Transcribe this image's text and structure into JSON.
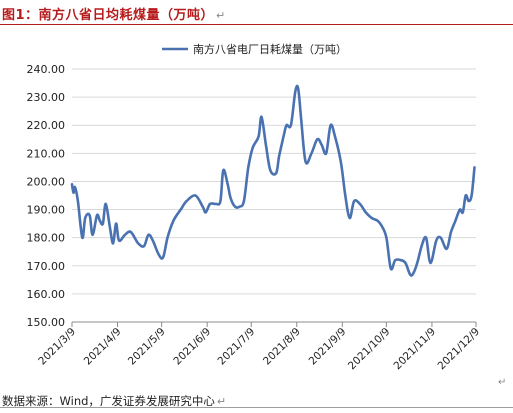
{
  "header": {
    "title": "图1：南方八省日均耗煤量（万吨）",
    "return_mark": "↵"
  },
  "footer": {
    "source": "数据来源：Wind，广发证券发展研究中心",
    "return_mark": "↵"
  },
  "colors": {
    "title": "#b71c1c",
    "series": "#4a72b0"
  },
  "chart_data": {
    "type": "line",
    "title": "",
    "xlabel": "",
    "ylabel": "",
    "ylim": [
      150,
      240
    ],
    "yticks": [
      "150.00",
      "160.00",
      "170.00",
      "180.00",
      "190.00",
      "200.00",
      "210.00",
      "220.00",
      "230.00",
      "240.00"
    ],
    "xlim": [
      "2021-03-09",
      "2021-12-09"
    ],
    "xticks": [
      {
        "date": "2021-03-09",
        "label": "2021/3/9"
      },
      {
        "date": "2021-04-09",
        "label": "2021/4/9"
      },
      {
        "date": "2021-05-09",
        "label": "2021/5/9"
      },
      {
        "date": "2021-06-09",
        "label": "2021/6/9"
      },
      {
        "date": "2021-07-09",
        "label": "2021/7/9"
      },
      {
        "date": "2021-08-09",
        "label": "2021/8/9"
      },
      {
        "date": "2021-09-09",
        "label": "2021/9/9"
      },
      {
        "date": "2021-10-09",
        "label": "2021/10/9"
      },
      {
        "date": "2021-11-09",
        "label": "2021/11/9"
      },
      {
        "date": "2021-12-09",
        "label": "2021/12/9"
      }
    ],
    "grid": "horizontal",
    "legend_position": "top-center",
    "series": [
      {
        "name": "南方八省电厂日耗煤量（万吨）",
        "points": [
          [
            "2021-03-09",
            199
          ],
          [
            "2021-03-10",
            196
          ],
          [
            "2021-03-11",
            198
          ],
          [
            "2021-03-13",
            193
          ],
          [
            "2021-03-16",
            180
          ],
          [
            "2021-03-18",
            187
          ],
          [
            "2021-03-21",
            188
          ],
          [
            "2021-03-23",
            181
          ],
          [
            "2021-03-26",
            188
          ],
          [
            "2021-03-28",
            186
          ],
          [
            "2021-03-30",
            185
          ],
          [
            "2021-04-01",
            192
          ],
          [
            "2021-04-04",
            183
          ],
          [
            "2021-04-06",
            178
          ],
          [
            "2021-04-08",
            185
          ],
          [
            "2021-04-10",
            179
          ],
          [
            "2021-04-14",
            181
          ],
          [
            "2021-04-18",
            182
          ],
          [
            "2021-04-23",
            178
          ],
          [
            "2021-04-27",
            177
          ],
          [
            "2021-04-30",
            181
          ],
          [
            "2021-05-03",
            179
          ],
          [
            "2021-05-07",
            174
          ],
          [
            "2021-05-10",
            173
          ],
          [
            "2021-05-13",
            180
          ],
          [
            "2021-05-17",
            186
          ],
          [
            "2021-05-22",
            190
          ],
          [
            "2021-05-26",
            193
          ],
          [
            "2021-06-01",
            195
          ],
          [
            "2021-06-06",
            191
          ],
          [
            "2021-06-08",
            189
          ],
          [
            "2021-06-11",
            192
          ],
          [
            "2021-06-15",
            192
          ],
          [
            "2021-06-18",
            193
          ],
          [
            "2021-06-20",
            204
          ],
          [
            "2021-06-23",
            199
          ],
          [
            "2021-06-25",
            194
          ],
          [
            "2021-06-28",
            191
          ],
          [
            "2021-07-01",
            191
          ],
          [
            "2021-07-04",
            193
          ],
          [
            "2021-07-07",
            205
          ],
          [
            "2021-07-10",
            212
          ],
          [
            "2021-07-14",
            216
          ],
          [
            "2021-07-16",
            223
          ],
          [
            "2021-07-19",
            213
          ],
          [
            "2021-07-22",
            204
          ],
          [
            "2021-07-26",
            203
          ],
          [
            "2021-07-28",
            209
          ],
          [
            "2021-07-31",
            216
          ],
          [
            "2021-08-02",
            220
          ],
          [
            "2021-08-05",
            220
          ],
          [
            "2021-08-08",
            232
          ],
          [
            "2021-08-10",
            233
          ],
          [
            "2021-08-12",
            222
          ],
          [
            "2021-08-15",
            207
          ],
          [
            "2021-08-19",
            210
          ],
          [
            "2021-08-23",
            215
          ],
          [
            "2021-08-26",
            213
          ],
          [
            "2021-08-29",
            210
          ],
          [
            "2021-09-01",
            220
          ],
          [
            "2021-09-04",
            216
          ],
          [
            "2021-09-08",
            207
          ],
          [
            "2021-09-11",
            195
          ],
          [
            "2021-09-14",
            187
          ],
          [
            "2021-09-17",
            193
          ],
          [
            "2021-09-21",
            192
          ],
          [
            "2021-09-25",
            189
          ],
          [
            "2021-09-29",
            187
          ],
          [
            "2021-10-03",
            186
          ],
          [
            "2021-10-06",
            184
          ],
          [
            "2021-10-09",
            180
          ],
          [
            "2021-10-12",
            169
          ],
          [
            "2021-10-15",
            172
          ],
          [
            "2021-10-19",
            172
          ],
          [
            "2021-10-22",
            171
          ],
          [
            "2021-10-25",
            167
          ],
          [
            "2021-10-27",
            167
          ],
          [
            "2021-10-30",
            171
          ],
          [
            "2021-11-02",
            177
          ],
          [
            "2021-11-05",
            180
          ],
          [
            "2021-11-08",
            171
          ],
          [
            "2021-11-12",
            179
          ],
          [
            "2021-11-15",
            180
          ],
          [
            "2021-11-19",
            176
          ],
          [
            "2021-11-22",
            182
          ],
          [
            "2021-11-25",
            186
          ],
          [
            "2021-11-28",
            190
          ],
          [
            "2021-11-30",
            189
          ],
          [
            "2021-12-02",
            195
          ],
          [
            "2021-12-04",
            193
          ],
          [
            "2021-12-06",
            195
          ],
          [
            "2021-12-08",
            205
          ]
        ]
      }
    ]
  }
}
